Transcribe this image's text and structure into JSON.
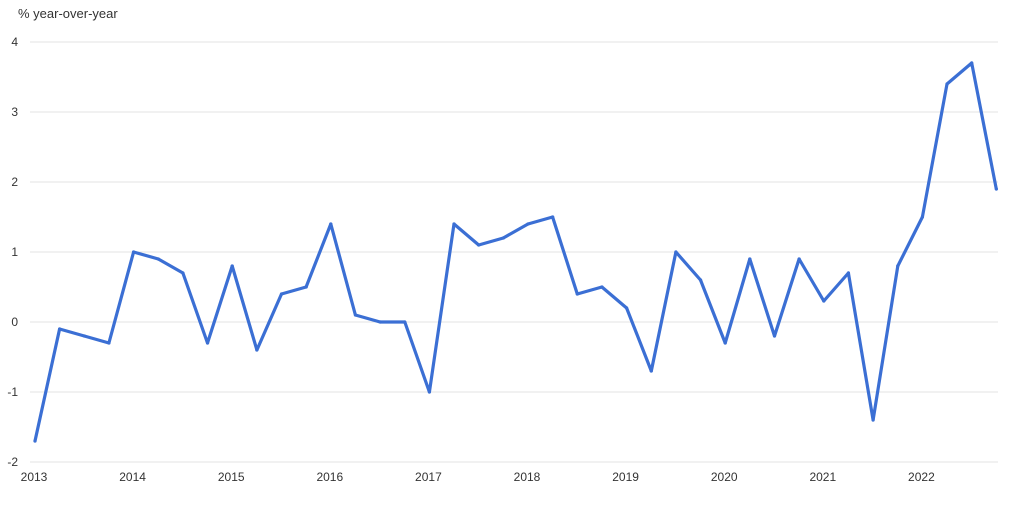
{
  "chart_data": {
    "type": "line",
    "title": "",
    "xlabel": "",
    "ylabel": "% year-over-year",
    "ylim": [
      -2,
      4
    ],
    "y_ticks": [
      -2,
      -1,
      0,
      1,
      2,
      3,
      4
    ],
    "x_ticks": [
      "2013",
      "2014",
      "2015",
      "2016",
      "2017",
      "2018",
      "2019",
      "2020",
      "2021",
      "2022"
    ],
    "grid": true,
    "legend": "none",
    "series": [
      {
        "color": "#3b6fd4",
        "x": [
          "2013-Q1",
          "2013-Q2",
          "2013-Q3",
          "2013-Q4",
          "2014-Q1",
          "2014-Q2",
          "2014-Q3",
          "2014-Q4",
          "2015-Q1",
          "2015-Q2",
          "2015-Q3",
          "2015-Q4",
          "2016-Q1",
          "2016-Q2",
          "2016-Q3",
          "2016-Q4",
          "2017-Q1",
          "2017-Q2",
          "2017-Q3",
          "2017-Q4",
          "2018-Q1",
          "2018-Q2",
          "2018-Q3",
          "2018-Q4",
          "2019-Q1",
          "2019-Q2",
          "2019-Q3",
          "2019-Q4",
          "2020-Q1",
          "2020-Q2",
          "2020-Q3",
          "2020-Q4",
          "2021-Q1",
          "2021-Q2",
          "2021-Q3",
          "2021-Q4",
          "2022-Q1",
          "2022-Q2",
          "2022-Q3",
          "2022-Q4"
        ],
        "values": [
          -1.7,
          -0.1,
          -0.2,
          -0.3,
          1.0,
          0.9,
          0.7,
          -0.3,
          0.8,
          -0.4,
          0.4,
          0.5,
          1.4,
          0.1,
          0.0,
          0.0,
          -1.0,
          1.4,
          1.1,
          1.2,
          1.4,
          1.5,
          0.4,
          0.5,
          0.2,
          -0.7,
          1.0,
          0.6,
          -0.3,
          0.9,
          -0.2,
          0.9,
          0.3,
          0.7,
          -1.4,
          0.8,
          1.5,
          3.4,
          3.7,
          1.9
        ]
      }
    ]
  }
}
